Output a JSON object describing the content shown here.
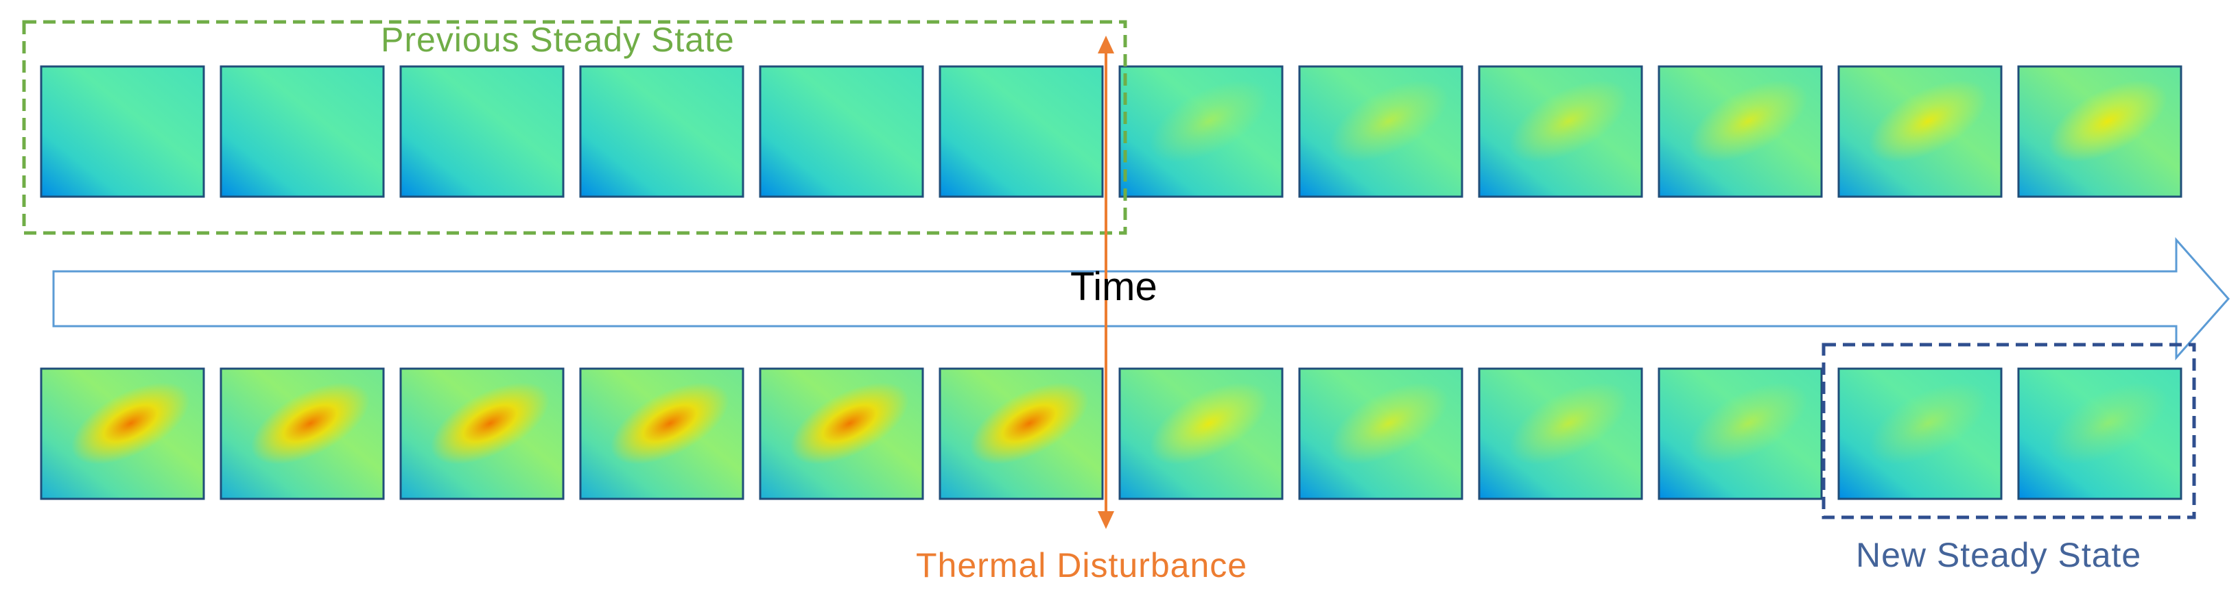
{
  "labels": {
    "previous_steady_state": "Previous Steady State",
    "time": "Time",
    "thermal_disturbance": "Thermal Disturbance",
    "new_steady_state": "New Steady State"
  },
  "colors": {
    "previous_box": "#70ad47",
    "new_box": "#2f4f8f",
    "disturbance": "#ed7d31",
    "time_arrow": "#5b9bd5",
    "frame_border": "#1f4e79"
  },
  "frames": {
    "top_row": [
      {
        "hotspot": 0.0
      },
      {
        "hotspot": 0.0
      },
      {
        "hotspot": 0.0
      },
      {
        "hotspot": 0.0
      },
      {
        "hotspot": 0.0
      },
      {
        "hotspot": 0.0
      },
      {
        "hotspot": 0.15
      },
      {
        "hotspot": 0.3
      },
      {
        "hotspot": 0.4
      },
      {
        "hotspot": 0.5
      },
      {
        "hotspot": 0.6
      },
      {
        "hotspot": 0.7
      }
    ],
    "bottom_row": [
      {
        "hotspot": 1.0
      },
      {
        "hotspot": 1.0
      },
      {
        "hotspot": 1.0
      },
      {
        "hotspot": 1.0
      },
      {
        "hotspot": 1.0
      },
      {
        "hotspot": 1.0
      },
      {
        "hotspot": 0.65
      },
      {
        "hotspot": 0.45
      },
      {
        "hotspot": 0.35
      },
      {
        "hotspot": 0.25
      },
      {
        "hotspot": 0.12
      },
      {
        "hotspot": 0.05
      }
    ]
  }
}
